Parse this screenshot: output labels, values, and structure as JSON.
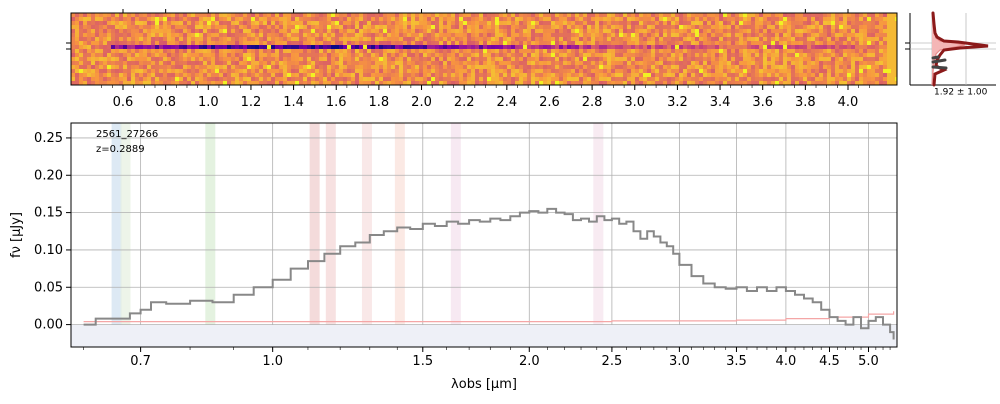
{
  "chart_data": [
    {
      "type": "heatmap",
      "panel": "2d-spectrum",
      "colormap": "plasma",
      "top_ticks": [
        "0.6",
        "0.8",
        "1.0",
        "1.2",
        "1.4",
        "1.6",
        "1.8",
        "2.0",
        "2.2",
        "2.4",
        "2.6",
        "2.8",
        "3.0",
        "3.2",
        "3.4",
        "3.6",
        "3.8",
        "4.0"
      ],
      "top_tick_values": [
        0.6,
        0.8,
        1.0,
        1.2,
        1.4,
        1.6,
        1.8,
        2.0,
        2.2,
        2.4,
        2.6,
        2.8,
        3.0,
        3.2,
        3.4,
        3.6,
        3.8,
        4.0
      ]
    },
    {
      "type": "line",
      "panel": "spatial-profile",
      "annotation": "1.92 ± 1.00",
      "colors": {
        "profile": "#8b1a1a",
        "model": "#e88a8a",
        "fill": "#f4b6b6",
        "points": "#444444"
      }
    },
    {
      "type": "line",
      "panel": "1d-spectrum",
      "label_id": "2561_27266",
      "label_z": "z=0.2889",
      "xlabel": "λobs [μm]",
      "ylabel": "fν [μJy]",
      "xlim": [
        0.58,
        5.4
      ],
      "ylim": [
        -0.03,
        0.27
      ],
      "x_tick_labels": [
        "0.7",
        "1.0",
        "1.5",
        "2.0",
        "2.5",
        "3.0",
        "3.5",
        "4.0",
        "4.5",
        "5.0"
      ],
      "x_tick_values": [
        0.7,
        1.0,
        1.5,
        2.0,
        2.5,
        3.0,
        3.5,
        4.0,
        4.5,
        5.0
      ],
      "y_tick_labels": [
        "0.00",
        "0.05",
        "0.10",
        "0.15",
        "0.20",
        "0.25"
      ],
      "y_tick_values": [
        0.0,
        0.05,
        0.1,
        0.15,
        0.2,
        0.25
      ],
      "grid": true,
      "series": [
        {
          "role": "flux",
          "color": "#888888",
          "x": [
            0.6,
            0.62,
            0.65,
            0.68,
            0.7,
            0.72,
            0.75,
            0.8,
            0.85,
            0.9,
            0.95,
            1.0,
            1.05,
            1.1,
            1.15,
            1.2,
            1.25,
            1.3,
            1.35,
            1.4,
            1.45,
            1.5,
            1.55,
            1.6,
            1.65,
            1.7,
            1.75,
            1.8,
            1.85,
            1.9,
            1.95,
            2.0,
            2.05,
            2.1,
            2.15,
            2.2,
            2.25,
            2.3,
            2.35,
            2.4,
            2.45,
            2.5,
            2.55,
            2.6,
            2.65,
            2.7,
            2.75,
            2.8,
            2.85,
            2.9,
            2.95,
            3.0,
            3.1,
            3.2,
            3.3,
            3.4,
            3.5,
            3.6,
            3.7,
            3.8,
            3.9,
            4.0,
            4.1,
            4.2,
            4.3,
            4.4,
            4.5,
            4.6,
            4.7,
            4.8,
            4.9,
            5.0,
            5.1,
            5.2,
            5.3,
            5.35
          ],
          "y": [
            0.0,
            0.008,
            0.008,
            0.015,
            0.02,
            0.03,
            0.028,
            0.032,
            0.03,
            0.04,
            0.05,
            0.06,
            0.075,
            0.085,
            0.095,
            0.105,
            0.11,
            0.12,
            0.125,
            0.13,
            0.128,
            0.135,
            0.132,
            0.138,
            0.135,
            0.14,
            0.138,
            0.142,
            0.14,
            0.145,
            0.15,
            0.152,
            0.15,
            0.155,
            0.15,
            0.148,
            0.14,
            0.142,
            0.138,
            0.145,
            0.14,
            0.142,
            0.135,
            0.138,
            0.125,
            0.115,
            0.125,
            0.118,
            0.11,
            0.105,
            0.095,
            0.08,
            0.065,
            0.055,
            0.05,
            0.048,
            0.05,
            0.045,
            0.05,
            0.045,
            0.05,
            0.045,
            0.04,
            0.035,
            0.03,
            0.02,
            0.01,
            0.005,
            0.0,
            0.01,
            -0.005,
            0.005,
            0.01,
            0.0,
            -0.01,
            -0.02
          ]
        },
        {
          "role": "error",
          "color": "#f4a6a6",
          "x": [
            0.6,
            1.0,
            1.5,
            2.0,
            2.5,
            3.0,
            3.5,
            4.0,
            4.5,
            5.0,
            5.35
          ],
          "y": [
            0.004,
            0.004,
            0.004,
            0.004,
            0.005,
            0.005,
            0.006,
            0.008,
            0.01,
            0.014,
            0.018
          ]
        }
      ],
      "line_bands": [
        {
          "x": 0.656,
          "color": "#cfe0ef"
        },
        {
          "x": 0.672,
          "color": "#e6f0e0"
        },
        {
          "x": 0.845,
          "color": "#d8ecd3"
        },
        {
          "x": 1.12,
          "color": "#f0cccc"
        },
        {
          "x": 1.17,
          "color": "#f3d4d4"
        },
        {
          "x": 1.29,
          "color": "#f6dede"
        },
        {
          "x": 1.41,
          "color": "#fae0d8"
        },
        {
          "x": 1.64,
          "color": "#f4e0ec"
        },
        {
          "x": 2.41,
          "color": "#f5e3ec"
        }
      ]
    }
  ]
}
